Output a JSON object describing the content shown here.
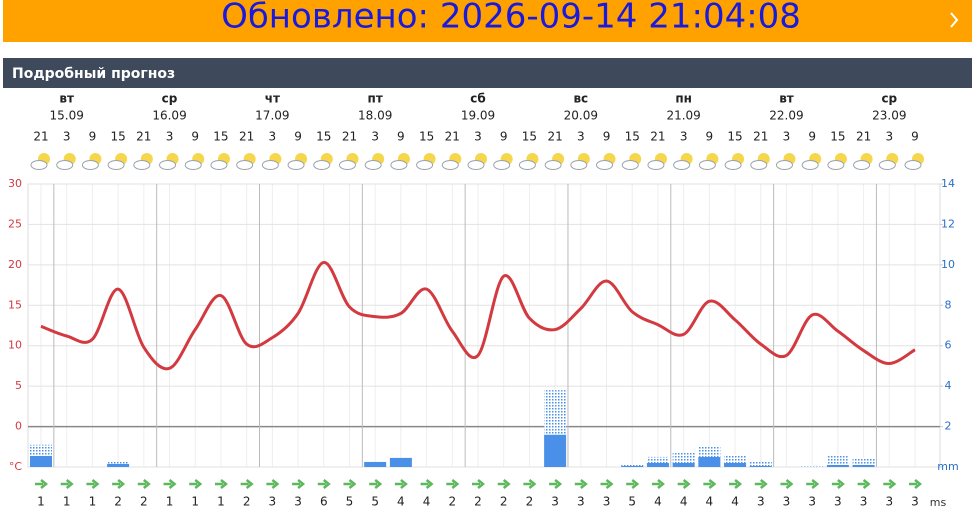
{
  "banner": {
    "text": "Обновлено: 2026-09-14 21:04:08"
  },
  "section": {
    "title": "Подробный прогноз"
  },
  "chart_data": {
    "type": "weather",
    "days": [
      {
        "weekday": "вт",
        "date": "15.09"
      },
      {
        "weekday": "ср",
        "date": "16.09"
      },
      {
        "weekday": "чт",
        "date": "17.09"
      },
      {
        "weekday": "пт",
        "date": "18.09"
      },
      {
        "weekday": "сб",
        "date": "19.09"
      },
      {
        "weekday": "вс",
        "date": "20.09"
      },
      {
        "weekday": "пн",
        "date": "21.09"
      },
      {
        "weekday": "вт",
        "date": "22.09"
      },
      {
        "weekday": "ср",
        "date": "23.09"
      }
    ],
    "categories": [
      21,
      3,
      9,
      15,
      21,
      3,
      9,
      15,
      21,
      3,
      9,
      15,
      21,
      3,
      9,
      15,
      21,
      3,
      9,
      15,
      21,
      3,
      9,
      15,
      21,
      3,
      9,
      15,
      21,
      3,
      9,
      15,
      21,
      3,
      9
    ],
    "temperature": {
      "color": "#d23a40",
      "values": [
        12.4,
        11.2,
        10.8,
        17,
        9.8,
        7.2,
        12,
        16.2,
        10.2,
        11,
        14,
        20.3,
        14.8,
        13.6,
        14,
        17,
        11.8,
        8.8,
        18.6,
        13.4,
        12,
        14.6,
        18,
        14.2,
        12.6,
        11.4,
        15.5,
        13.2,
        10.2,
        8.8,
        13.8,
        11.8,
        9.4,
        7.8,
        9.5
      ]
    },
    "precipitation": {
      "color": "#4a8fe8",
      "values": [
        0.55,
        0,
        0,
        0.15,
        0,
        0,
        0,
        0,
        0,
        0,
        0,
        0,
        0,
        0.25,
        0.45,
        0,
        0,
        0,
        0,
        0,
        1.6,
        0,
        0,
        0.05,
        0.2,
        0.2,
        0.5,
        0.2,
        0.05,
        0,
        0,
        0.1,
        0.1,
        0,
        0
      ]
    },
    "precipitation_possible": {
      "color": "#4a8fe8",
      "values": [
        0.55,
        0,
        0,
        0.1,
        0,
        0,
        0,
        0,
        0,
        0,
        0,
        0,
        0,
        0,
        0,
        0,
        0,
        0,
        0,
        0,
        2.2,
        0,
        0,
        0.05,
        0.3,
        0.5,
        0.5,
        0.4,
        0.2,
        0,
        0.05,
        0.5,
        0.35,
        0,
        0
      ]
    },
    "wind_speed": [
      1,
      1,
      1,
      2,
      2,
      1,
      1,
      1,
      2,
      3,
      3,
      6,
      5,
      5,
      4,
      4,
      2,
      2,
      2,
      2,
      3,
      3,
      3,
      5,
      4,
      4,
      4,
      4,
      3,
      3,
      3,
      3,
      3,
      3,
      3
    ],
    "wind_unit": "ms",
    "ylim": [
      -5,
      30
    ],
    "yticks": [
      30,
      25,
      20,
      15,
      10,
      5,
      0,
      {
        "value": -5,
        "label": "°C"
      }
    ],
    "y2lim": [
      0,
      14
    ],
    "y2ticks": [
      14,
      12,
      10,
      8,
      6,
      4,
      2,
      {
        "value": 0,
        "label": "mm"
      }
    ]
  }
}
